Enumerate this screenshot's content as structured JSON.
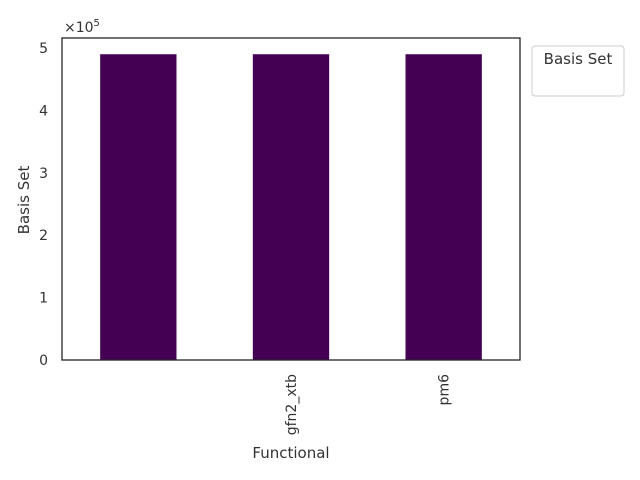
{
  "chart_data": {
    "type": "bar",
    "categories": [
      "",
      "gfn2_xtb",
      "pm6"
    ],
    "series": [
      {
        "values": [
          490000,
          490000,
          490000
        ]
      }
    ],
    "xlabel": "Functional",
    "ylabel": "Basis Set",
    "y_ticks": [
      "0",
      "1",
      "2",
      "3",
      "4",
      "5"
    ],
    "y_tick_values": [
      0,
      100000,
      200000,
      300000,
      400000,
      500000
    ],
    "ylim": [
      0,
      516000
    ],
    "y_offset_label": "×10",
    "y_offset_exponent": "5",
    "legend": {
      "title": "Basis Set",
      "position": "upper-right-outside"
    },
    "grid": false,
    "colors": {
      "bar": "#440154",
      "axis": "#262626"
    }
  }
}
